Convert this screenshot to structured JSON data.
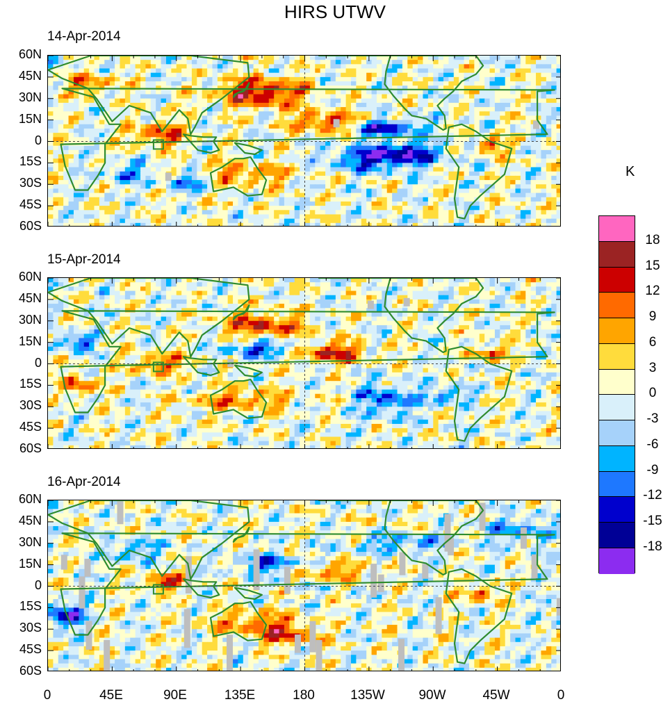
{
  "title": "HIRS UTWV",
  "panels": [
    {
      "date": "14-Apr-2014"
    },
    {
      "date": "15-Apr-2014"
    },
    {
      "date": "16-Apr-2014"
    }
  ],
  "lat_labels": [
    "60N",
    "45N",
    "30N",
    "15N",
    "0",
    "15S",
    "30S",
    "45S",
    "60S"
  ],
  "lon_labels": [
    "0",
    "45E",
    "90E",
    "135E",
    "180",
    "135W",
    "90W",
    "45W",
    "0"
  ],
  "colorbar": {
    "unit": "K",
    "labels": [
      "18",
      "15",
      "12",
      "9",
      "6",
      "3",
      "0",
      "-3",
      "-6",
      "-9",
      "-12",
      "-15",
      "-18"
    ],
    "colors": [
      "#ff66c0",
      "#9b2323",
      "#cc0000",
      "#ff6a00",
      "#ffa500",
      "#ffdc3c",
      "#ffffcc",
      "#d9f0fa",
      "#a6d2fa",
      "#00b4ff",
      "#1e78ff",
      "#0000cd",
      "#000096",
      "#8c2cf0"
    ]
  },
  "colors": {
    "land_outline": "#2e8b2e",
    "missing": "#bebebe",
    "grid": "#444444"
  }
}
